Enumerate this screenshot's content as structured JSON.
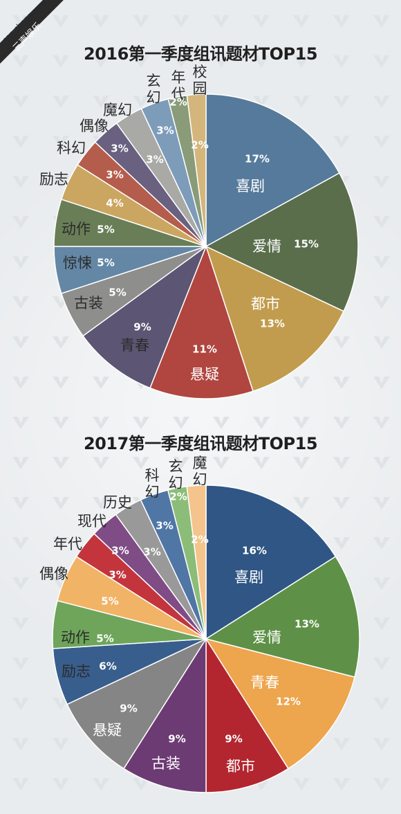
{
  "watermark": {
    "line1": "san sheng",
    "line2": "三声娱乐"
  },
  "chart_data": [
    {
      "type": "pie",
      "title": "2016第一季度组讯题材TOP15",
      "slices": [
        {
          "label": "喜剧",
          "value": 17,
          "value_label": "17%",
          "color": "#567a9b"
        },
        {
          "label": "爱情",
          "value": 15,
          "value_label": "15%",
          "color": "#5a6e4c"
        },
        {
          "label": "都市",
          "value": 13,
          "value_label": "13%",
          "color": "#c29c4e"
        },
        {
          "label": "悬疑",
          "value": 11,
          "value_label": "11%",
          "color": "#b0463f"
        },
        {
          "label": "青春",
          "value": 9,
          "value_label": "9%",
          "color": "#5c5573"
        },
        {
          "label": "古装",
          "value": 5,
          "value_label": "5%",
          "color": "#8e8f8c"
        },
        {
          "label": "惊悚",
          "value": 5,
          "value_label": "5%",
          "color": "#6487a6"
        },
        {
          "label": "动作",
          "value": 5,
          "value_label": "5%",
          "color": "#697e56"
        },
        {
          "label": "励志",
          "value": 4,
          "value_label": "4%",
          "color": "#cba660"
        },
        {
          "label": "科幻",
          "value": 3,
          "value_label": "3%",
          "color": "#b45d4c"
        },
        {
          "label": "偶像",
          "value": 3,
          "value_label": "3%",
          "color": "#6a6080"
        },
        {
          "label": "魔幻",
          "value": 3,
          "value_label": "3%",
          "color": "#a9a9a5"
        },
        {
          "label": "玄幻",
          "value": 3,
          "value_label": "3%",
          "color": "#7d9cb9"
        },
        {
          "label": "年代",
          "value": 2,
          "value_label": "2%",
          "color": "#899b78"
        },
        {
          "label": "校园",
          "value": 2,
          "value_label": "2%",
          "color": "#d4b67c"
        }
      ]
    },
    {
      "type": "pie",
      "title": "2017第一季度组讯题材TOP15",
      "slices": [
        {
          "label": "喜剧",
          "value": 16,
          "value_label": "16%",
          "color": "#2f5684"
        },
        {
          "label": "爱情",
          "value": 13,
          "value_label": "13%",
          "color": "#5e9147"
        },
        {
          "label": "青春",
          "value": 12,
          "value_label": "12%",
          "color": "#eda54e"
        },
        {
          "label": "都市",
          "value": 9,
          "value_label": "9%",
          "color": "#b3262f"
        },
        {
          "label": "古装",
          "value": 9,
          "value_label": "9%",
          "color": "#6d3b73"
        },
        {
          "label": "悬疑",
          "value": 9,
          "value_label": "9%",
          "color": "#858585"
        },
        {
          "label": "励志",
          "value": 6,
          "value_label": "6%",
          "color": "#385e8d"
        },
        {
          "label": "动作",
          "value": 5,
          "value_label": "5%",
          "color": "#6ea55a"
        },
        {
          "label": "偶像",
          "value": 5,
          "value_label": "5%",
          "color": "#f1b366"
        },
        {
          "label": "年代",
          "value": 3,
          "value_label": "3%",
          "color": "#c3343c"
        },
        {
          "label": "现代",
          "value": 3,
          "value_label": "3%",
          "color": "#7f4c86"
        },
        {
          "label": "历史",
          "value": 3,
          "value_label": "3%",
          "color": "#999999"
        },
        {
          "label": "科幻",
          "value": 3,
          "value_label": "3%",
          "color": "#4f76a5"
        },
        {
          "label": "玄幻",
          "value": 2,
          "value_label": "2%",
          "color": "#8cbd78"
        },
        {
          "label": "魔幻",
          "value": 2,
          "value_label": "2%",
          "color": "#f4c48c"
        }
      ]
    }
  ]
}
